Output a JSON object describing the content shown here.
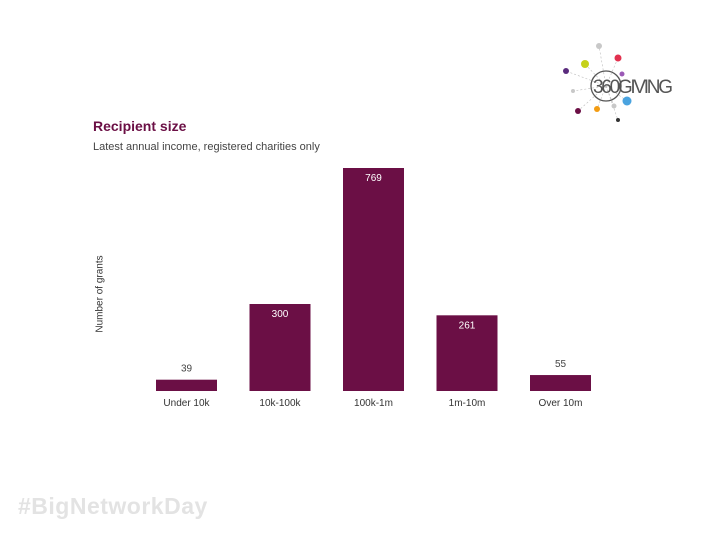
{
  "brand": {
    "logo_text": "360GIVING",
    "colors": {
      "bar": "#6b0f45",
      "title": "#6b0f45"
    },
    "logo_dots": [
      "#c8c8c8",
      "#c5d11a",
      "#e2314f",
      "#5a2b7d",
      "#c8c8c8",
      "#9b59b6",
      "#4aa3df",
      "#f39c12",
      "#6b0f45",
      "#333333"
    ]
  },
  "footer": {
    "hashtag": "#BigNetworkDay"
  },
  "chart_data": {
    "type": "bar",
    "title": "Recipient size",
    "subtitle": "Latest annual income, registered charities only",
    "ylabel": "Number of grants",
    "xlabel": "",
    "categories": [
      "Under 10k",
      "10k-100k",
      "100k-1m",
      "1m-10m",
      "Over 10m"
    ],
    "values": [
      39,
      300,
      769,
      261,
      55
    ],
    "ylim": [
      0,
      769
    ],
    "grid": false,
    "legend": "none",
    "bar_color": "#6b0f45"
  }
}
